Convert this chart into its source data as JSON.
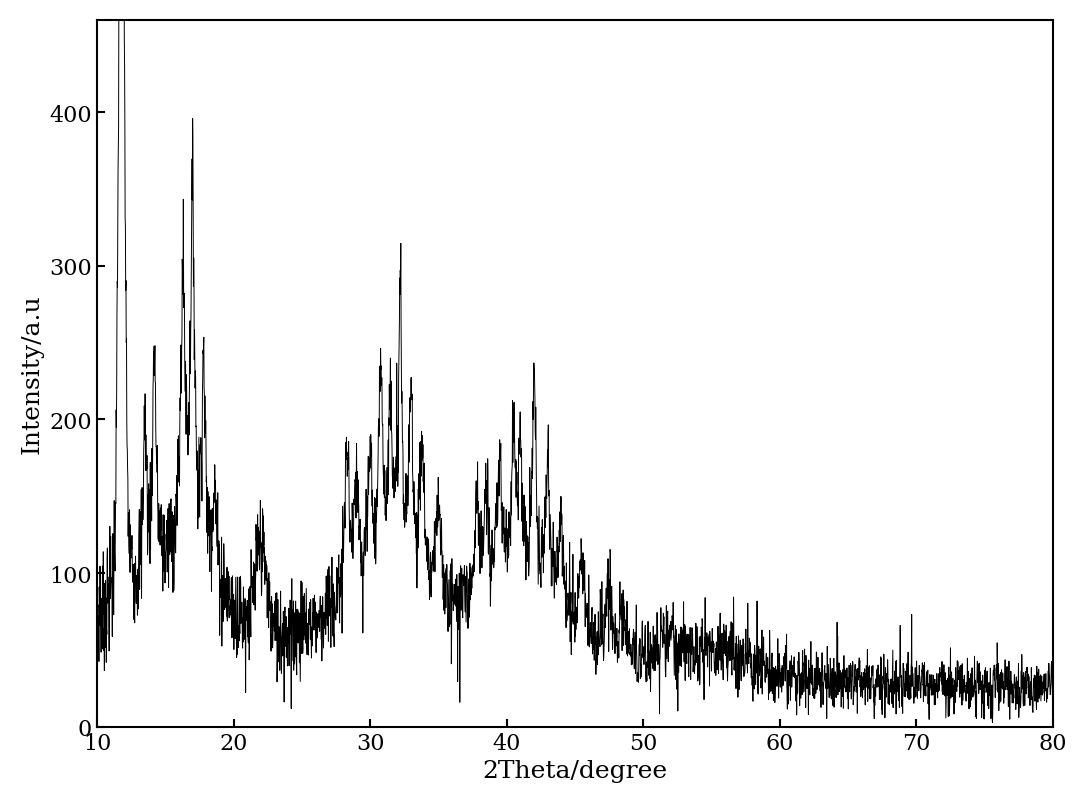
{
  "xlabel": "2Theta/degree",
  "ylabel": "Intensity/a.u",
  "xlim": [
    10,
    80
  ],
  "ylim": [
    0,
    460
  ],
  "xticks": [
    10,
    20,
    30,
    40,
    50,
    60,
    70,
    80
  ],
  "yticks": [
    0,
    100,
    200,
    300,
    400
  ],
  "line_color": "#000000",
  "line_width": 0.7,
  "background_color": "#ffffff",
  "figsize": [
    10.88,
    8.04
  ],
  "dpi": 100,
  "tick_fontsize": 16,
  "label_fontsize": 18
}
